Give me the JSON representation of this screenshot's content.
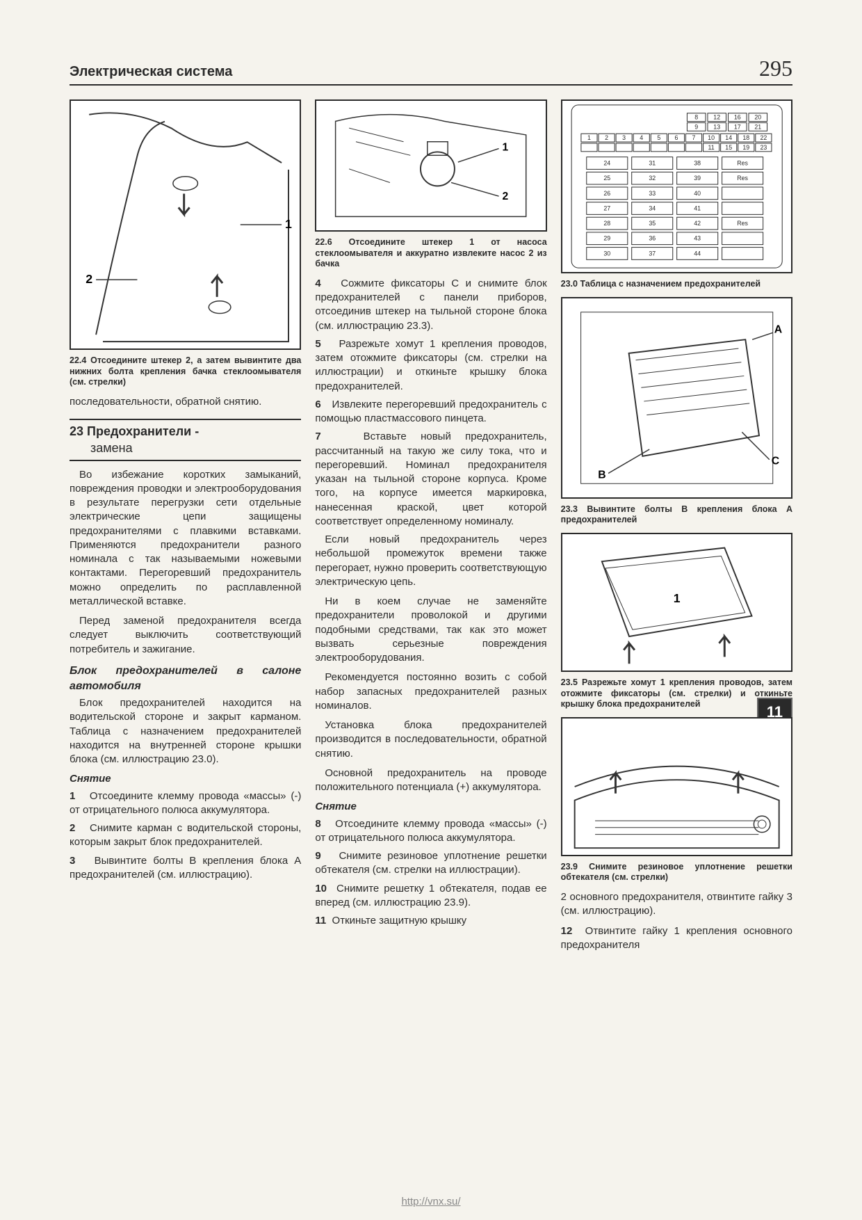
{
  "header": {
    "title": "Электрическая система",
    "page_number": "295"
  },
  "chapter_tab": "11",
  "footer_url": "http://vnx.su/",
  "col1": {
    "fig_22_4_caption": "22.4 Отсоедините штекер 2, а затем вывинтите два нижних болта крепления бачка стеклоомывателя (см. стрелки)",
    "p1": "последовательности, обратной снятию.",
    "section23": {
      "num": "23",
      "main": "Предохранители -",
      "sub": "замена"
    },
    "p2": "Во избежание коротких замыканий, повреждения проводки и электрооборудования в результате перегрузки сети отдельные электрические цепи защищены предохранителями с плавкими вставками. Применяются предохранители разного номинала с так называемыми ножевыми контактами. Перегоревший предохранитель можно определить по расплавленной металлической вставке.",
    "p3": "Перед заменой предохранителя всегда следует выключить соответствующий потребитель и зажигание.",
    "sub_block": "Блок предохранителей в салоне автомобиля",
    "p4": "Блок предохранителей находится на водительской стороне и закрыт карманом. Таблица с назначением предохранителей находится на внутренней стороне крышки блока (см. иллюстрацию 23.0).",
    "sub_remove": "Снятие",
    "s1": "Отсоедините клемму провода «массы» (-) от отрицательного полюса аккумулятора.",
    "s2": "Снимите карман с водительской стороны, которым закрыт блок предохранителей.",
    "s3": "Вывинтите болты B крепления блока A предохранителей (см. иллюстрацию)."
  },
  "col2": {
    "fig_22_6_caption": "22.6 Отсоедините штекер 1 от насоса стеклоомывателя и аккуратно извлеките насос 2 из бачка",
    "s4": "Сожмите фиксаторы C и снимите блок предохранителей с панели приборов, отсоединив штекер на тыльной стороне блока (см. иллюстрацию 23.3).",
    "s5": "Разрежьте хомут 1 крепления проводов, затем отожмите фиксаторы (см. стрелки на иллюстрации) и откиньте крышку блока предохранителей.",
    "s6": "Извлеките перегоревший предохранитель с помощью пластмассового пинцета.",
    "s7": "Вставьте новый предохранитель, рассчитанный на такую же силу тока, что и перегоревший. Номинал предохранителя указан на тыльной стороне корпуса. Кроме того, на корпусе имеется маркировка, нанесенная краской, цвет которой соответствует определенному номиналу.",
    "p5": "Если новый предохранитель через небольшой промежуток времени также перегорает, нужно проверить соответствующую электрическую цепь.",
    "p6": "Ни в коем случае не заменяйте предохранители проволокой и другими подобными средствами, так как это может вызвать серьезные повреждения электрооборудования.",
    "p7": "Рекомендуется постоянно возить с собой набор запасных предохранителей разных номиналов.",
    "p8": "Установка блока предохранителей производится в последовательности, обратной снятию.",
    "p9": "Основной предохранитель на проводе положительного потенциала (+) аккумулятора.",
    "sub_remove2": "Снятие",
    "s8": "Отсоедините клемму провода «массы» (-) от отрицательного полюса аккумулятора.",
    "s9": "Снимите резиновое уплотнение решетки обтекателя (см. стрелки на иллюстрации).",
    "s10": "Снимите решетку 1 обтекателя, подав ее вперед (см. иллюстрацию 23.9).",
    "s11": "Откиньте защитную крышку"
  },
  "col3": {
    "fig_23_0_caption": "23.0 Таблица с назначением предохранителей",
    "fig_23_3_caption": "23.3 Вывинтите болты B крепления блока A предохранителей",
    "fig_23_5_caption": "23.5 Разрежьте хомут 1 крепления проводов, затем отожмите фиксаторы (см. стрелки) и откиньте крышку блока предохранителей",
    "fig_23_9_caption": "23.9 Снимите резиновое уплотнение решетки обтекателя (см. стрелки)",
    "p_end1": "2 основного предохранителя, отвинтите гайку 3 (см. иллюстрацию).",
    "s12": "Отвинтите гайку 1 крепления основного предохранителя"
  },
  "fusebox": {
    "row_top1": [
      "8",
      "12",
      "16",
      "20"
    ],
    "row_top2": [
      "9",
      "13",
      "17",
      "21"
    ],
    "row_mid1": [
      "1",
      "2",
      "3",
      "4",
      "5",
      "6",
      "7",
      "10",
      "14",
      "18",
      "22"
    ],
    "row_mid2": [
      "",
      "",
      "",
      "",
      "",
      "",
      "",
      "11",
      "15",
      "19",
      "23"
    ],
    "big_rows": [
      [
        "24",
        "31",
        "38",
        "Res"
      ],
      [
        "25",
        "32",
        "39",
        "Res"
      ],
      [
        "26",
        "33",
        "40",
        ""
      ],
      [
        "27",
        "34",
        "41",
        ""
      ],
      [
        "28",
        "35",
        "42",
        "Res"
      ],
      [
        "29",
        "36",
        "43",
        ""
      ],
      [
        "30",
        "37",
        "44",
        ""
      ]
    ]
  }
}
